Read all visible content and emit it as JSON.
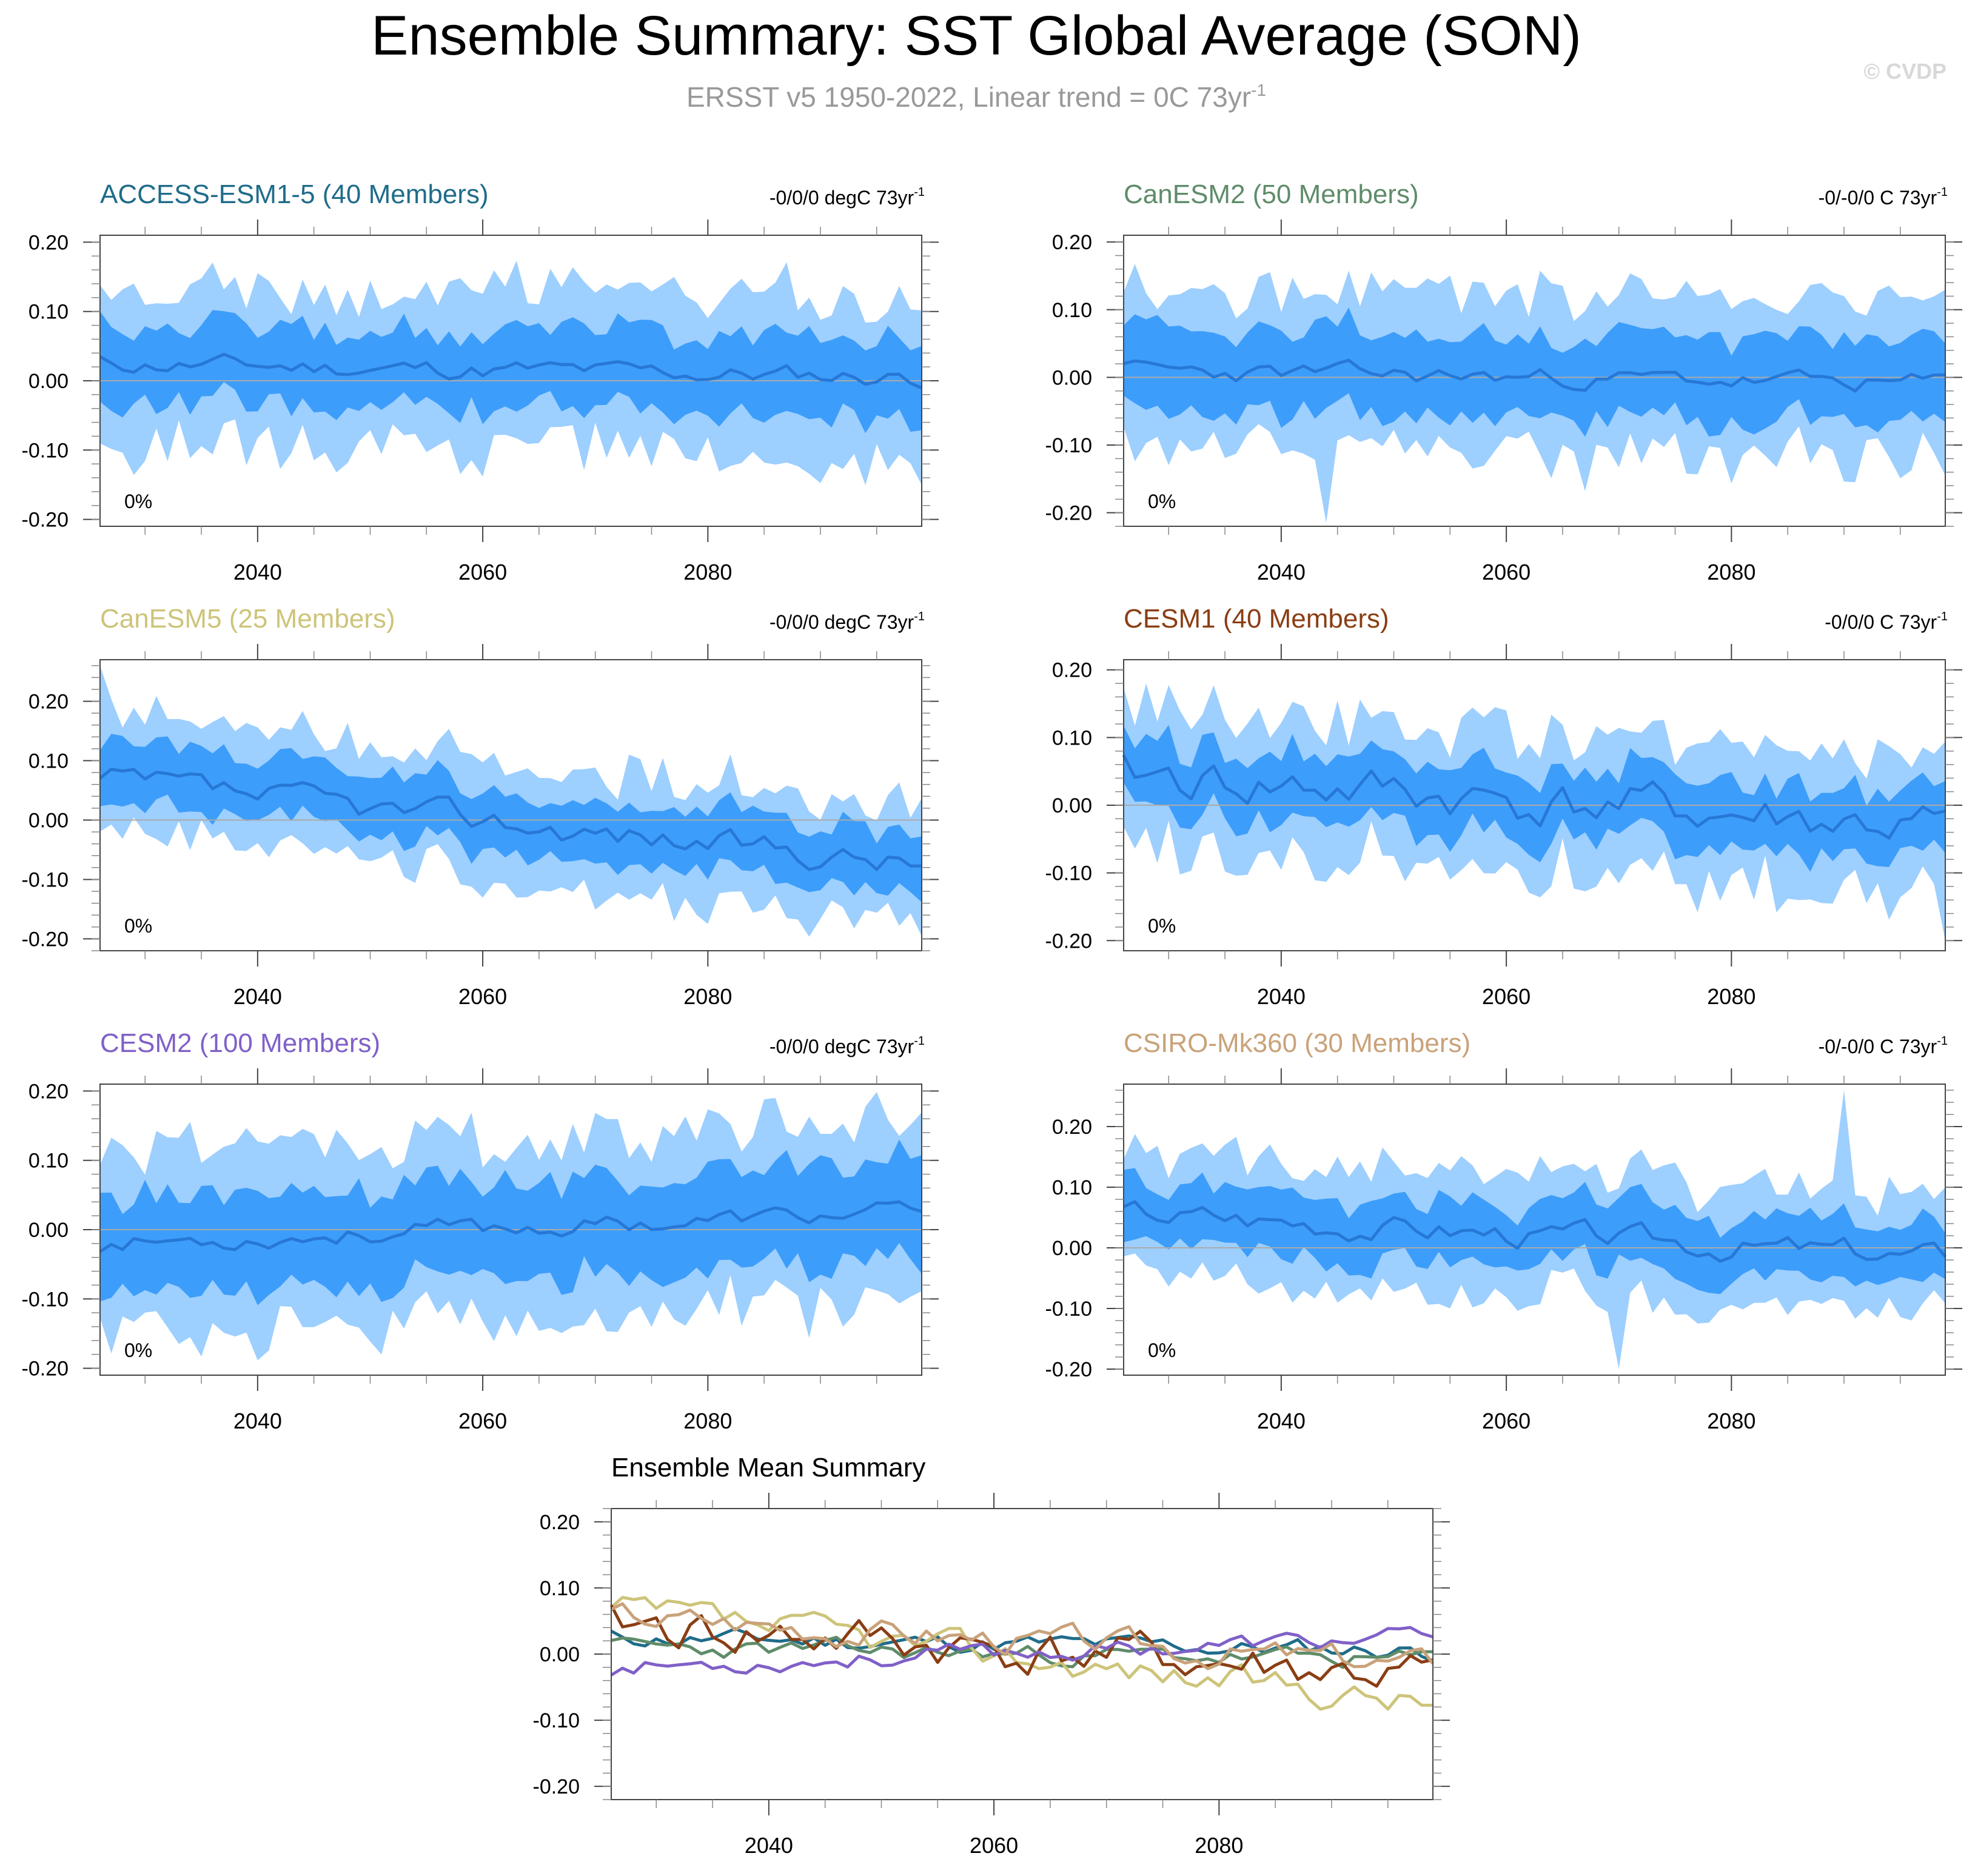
{
  "figure": {
    "title": "Ensemble Summary: SST Global Average (SON)",
    "subtitle": "ERSST v5 1950-2022, Linear trend = 0C 73yr",
    "subtitle_sup": "-1",
    "watermark": "© CVDP"
  },
  "colors": {
    "outer_band": "#9dcfff",
    "inner_band": "#3d9dfa",
    "mean_line": "#2778d6",
    "zero_line": "#aaaaaa",
    "frame": "#444444"
  },
  "chart_data": [
    {
      "type": "area",
      "title": "ACCESS-ESM1-5 (40 Members)",
      "title_color": "#1f6c8a",
      "trend_label": "-0/0/0 degC 73yr",
      "trend_sup": "-1",
      "pct_label": "0%",
      "x_start": 2026,
      "x_end": 2099,
      "xlim": [
        2026,
        2099
      ],
      "ylim": [
        -0.21,
        0.21
      ],
      "yticks": [
        0.2,
        0.1,
        0.0,
        -0.1,
        -0.2
      ],
      "ytick_labels": [
        "0.20",
        "0.10",
        "0.00",
        "-0.10",
        "-0.20"
      ],
      "xticks": [
        2040,
        2060,
        2080
      ],
      "xtick_labels": [
        "2040",
        "2060",
        "2080"
      ],
      "seed": 11,
      "mean_amp": 0.012,
      "inner_half": 0.055,
      "outer_half": 0.115,
      "mean_start": 0.025,
      "mean_end": 0.005,
      "spike_index": -1,
      "spike_val": 0,
      "dip_index": -1,
      "dip_val": 0
    },
    {
      "type": "area",
      "title": "CanESM2 (50 Members)",
      "title_color": "#5f8c6a",
      "trend_label": "-0/-0/0 C 73yr",
      "trend_sup": "-1",
      "pct_label": "0%",
      "x_start": 2026,
      "x_end": 2099,
      "xlim": [
        2026,
        2099
      ],
      "ylim": [
        -0.22,
        0.21
      ],
      "yticks": [
        0.2,
        0.1,
        0.0,
        -0.1,
        -0.2
      ],
      "ytick_labels": [
        "0.20",
        "0.10",
        "0.00",
        "-0.10",
        "-0.20"
      ],
      "xticks": [
        2040,
        2060,
        2080
      ],
      "xtick_labels": [
        "2040",
        "2060",
        "2080"
      ],
      "seed": 23,
      "mean_amp": 0.012,
      "inner_half": 0.06,
      "outer_half": 0.115,
      "mean_start": 0.01,
      "mean_end": -0.01,
      "spike_index": -1,
      "spike_val": 0,
      "dip_index": 18,
      "dip_val": -0.215
    },
    {
      "type": "area",
      "title": "CanESM5 (25 Members)",
      "title_color": "#cdc47a",
      "trend_label": "-0/0/0 degC 73yr",
      "trend_sup": "-1",
      "pct_label": "0%",
      "x_start": 2026,
      "x_end": 2099,
      "xlim": [
        2026,
        2099
      ],
      "ylim": [
        -0.22,
        0.27
      ],
      "yticks": [
        0.2,
        0.1,
        0.0,
        -0.1,
        -0.2
      ],
      "ytick_labels": [
        "0.20",
        "0.10",
        "0.00",
        "-0.10",
        "-0.20"
      ],
      "xticks": [
        2040,
        2060,
        2080
      ],
      "xtick_labels": [
        "2040",
        "2060",
        "2080"
      ],
      "seed": 37,
      "mean_amp": 0.02,
      "inner_half": 0.05,
      "outer_half": 0.1,
      "mean_start": 0.065,
      "mean_end": -0.075,
      "spike_index": 0,
      "spike_val": 0.26,
      "dip_index": -1,
      "dip_val": 0
    },
    {
      "type": "area",
      "title": "CESM1 (40 Members)",
      "title_color": "#8a3e14",
      "trend_label": "-0/0/0 C 73yr",
      "trend_sup": "-1",
      "pct_label": "0%",
      "x_start": 2026,
      "x_end": 2099,
      "xlim": [
        2026,
        2099
      ],
      "ylim": [
        -0.215,
        0.215
      ],
      "yticks": [
        0.2,
        0.1,
        0.0,
        -0.1,
        -0.2
      ],
      "ytick_labels": [
        "0.20",
        "0.10",
        "0.00",
        "-0.10",
        "-0.20"
      ],
      "xticks": [
        2040,
        2060,
        2080
      ],
      "xtick_labels": [
        "2040",
        "2060",
        "2080"
      ],
      "seed": 41,
      "mean_amp": 0.03,
      "inner_half": 0.05,
      "outer_half": 0.105,
      "mean_start": 0.045,
      "mean_end": -0.035,
      "spike_index": -1,
      "spike_val": 0,
      "dip_index": 73,
      "dip_val": -0.2
    },
    {
      "type": "area",
      "title": "CESM2 (100 Members)",
      "title_color": "#8060c8",
      "trend_label": "-0/0/0 degC 73yr",
      "trend_sup": "-1",
      "pct_label": "0%",
      "x_start": 2026,
      "x_end": 2099,
      "xlim": [
        2026,
        2099
      ],
      "ylim": [
        -0.21,
        0.21
      ],
      "yticks": [
        0.2,
        0.1,
        0.0,
        -0.1,
        -0.2
      ],
      "ytick_labels": [
        "0.20",
        "0.10",
        "0.00",
        "-0.10",
        "-0.20"
      ],
      "xticks": [
        2040,
        2060,
        2080
      ],
      "xtick_labels": [
        "2040",
        "2060",
        "2080"
      ],
      "seed": 53,
      "mean_amp": 0.012,
      "inner_half": 0.07,
      "outer_half": 0.13,
      "mean_start": -0.02,
      "mean_end": 0.025,
      "spike_index": -1,
      "spike_val": 0,
      "dip_index": -1,
      "dip_val": 0
    },
    {
      "type": "area",
      "title": "CSIRO-Mk360 (30 Members)",
      "title_color": "#c9a27a",
      "trend_label": "-0/-0/0 C 73yr",
      "trend_sup": "-1",
      "pct_label": "0%",
      "x_start": 2026,
      "x_end": 2099,
      "xlim": [
        2026,
        2099
      ],
      "ylim": [
        -0.21,
        0.27
      ],
      "yticks": [
        0.2,
        0.1,
        0.0,
        -0.1,
        -0.2
      ],
      "ytick_labels": [
        "0.20",
        "0.10",
        "0.00",
        "-0.10",
        "-0.20"
      ],
      "xticks": [
        2040,
        2060,
        2080
      ],
      "xtick_labels": [
        "2040",
        "2060",
        "2080"
      ],
      "seed": 67,
      "mean_amp": 0.018,
      "inner_half": 0.05,
      "outer_half": 0.1,
      "mean_start": 0.06,
      "mean_end": -0.015,
      "spike_index": 64,
      "spike_val": 0.26,
      "dip_index": 44,
      "dip_val": -0.2
    },
    {
      "type": "line",
      "title": "Ensemble Mean Summary",
      "title_color": "#000000",
      "x_start": 2026,
      "x_end": 2099,
      "xlim": [
        2026,
        2099
      ],
      "ylim": [
        -0.22,
        0.22
      ],
      "yticks": [
        0.2,
        0.1,
        0.0,
        -0.1,
        -0.2
      ],
      "ytick_labels": [
        "0.20",
        "0.10",
        "0.00",
        "-0.10",
        "-0.20"
      ],
      "xticks": [
        2040,
        2060,
        2080
      ],
      "xtick_labels": [
        "2040",
        "2060",
        "2080"
      ],
      "series": [
        {
          "name": "ACCESS-ESM1-5",
          "color": "#1f6c8a",
          "seed": 11,
          "amp": 0.012,
          "start": 0.025,
          "end": 0.005
        },
        {
          "name": "CanESM2",
          "color": "#5f8c6a",
          "seed": 23,
          "amp": 0.012,
          "start": 0.01,
          "end": -0.01
        },
        {
          "name": "CanESM5",
          "color": "#cdc47a",
          "seed": 37,
          "amp": 0.02,
          "start": 0.065,
          "end": -0.075
        },
        {
          "name": "CESM1",
          "color": "#8a3e14",
          "seed": 41,
          "amp": 0.03,
          "start": 0.045,
          "end": -0.035
        },
        {
          "name": "CESM2",
          "color": "#8060c8",
          "seed": 53,
          "amp": 0.012,
          "start": -0.02,
          "end": 0.025
        },
        {
          "name": "CSIRO-Mk360",
          "color": "#c9a27a",
          "seed": 67,
          "amp": 0.018,
          "start": 0.06,
          "end": -0.015
        }
      ]
    }
  ]
}
